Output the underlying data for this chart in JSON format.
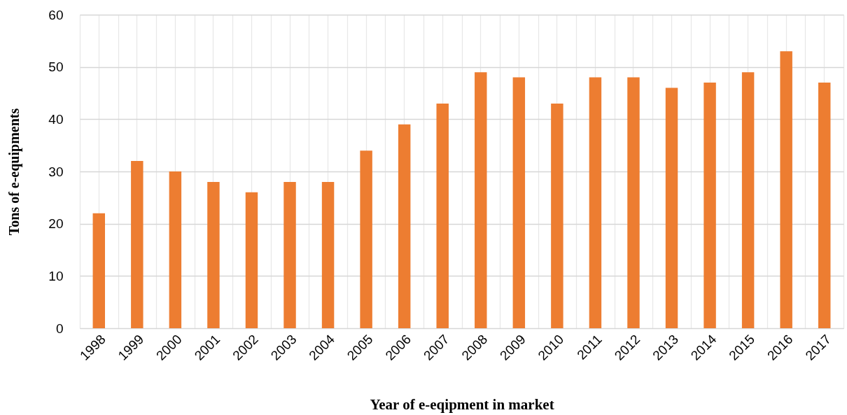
{
  "chart_data": {
    "type": "bar",
    "xlabel": "Year of e-eqipment in market",
    "ylabel": "Tons of e-equipments",
    "categories": [
      "1998",
      "1999",
      "2000",
      "2001",
      "2002",
      "2003",
      "2004",
      "2005",
      "2006",
      "2007",
      "2008",
      "2009",
      "2010",
      "2011",
      "2012",
      "2013",
      "2014",
      "2015",
      "2016",
      "2017"
    ],
    "values": [
      22,
      32,
      30,
      28,
      26,
      28,
      28,
      34,
      39,
      43,
      49,
      48,
      43,
      48,
      48,
      46,
      47,
      49,
      53,
      47
    ],
    "color": "#ed7d31",
    "ylim": [
      0,
      60
    ],
    "yticks": [
      0,
      10,
      20,
      30,
      40,
      50,
      60
    ],
    "grid": true
  }
}
